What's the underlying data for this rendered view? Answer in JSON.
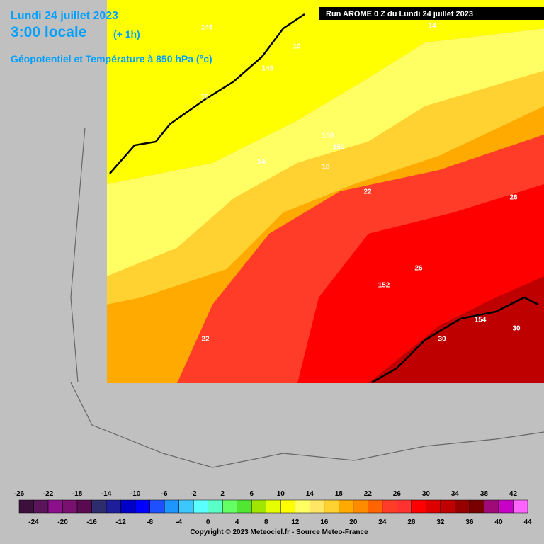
{
  "header": {
    "date": "Lundi 24 juillet 2023",
    "time": "3:00 locale",
    "offset": "(+ 1h)",
    "field": "Géopotentiel et Température à 850 hPa (°c)",
    "run": "Run AROME 0 Z du Lundi 24 juillet 2023"
  },
  "map": {
    "contour_labels": [
      "146",
      "14",
      "10",
      "148",
      "10",
      "150",
      "150",
      "14",
      "18",
      "22",
      "26",
      "26",
      "152",
      "154",
      "30",
      "30",
      "22"
    ]
  },
  "colorbar": {
    "levels": [
      -26,
      -24,
      -22,
      -20,
      -18,
      -16,
      -14,
      -12,
      -10,
      -8,
      -6,
      -4,
      -2,
      0,
      2,
      4,
      6,
      8,
      10,
      12,
      14,
      16,
      18,
      20,
      22,
      24,
      26,
      28,
      30,
      32,
      34,
      36,
      38,
      40,
      42,
      44
    ],
    "colors": [
      "#3d0f3d",
      "#5a145a",
      "#8c0f8c",
      "#7a1070",
      "#5a0a50",
      "#2d2d6e",
      "#1e1e9b",
      "#0000c8",
      "#0000ff",
      "#1e50ff",
      "#1e96ff",
      "#3cc8ff",
      "#5affff",
      "#5affc8",
      "#64ff64",
      "#50e632",
      "#a0e600",
      "#e6ff00",
      "#ffff00",
      "#ffff64",
      "#ffe664",
      "#ffd232",
      "#ffaa00",
      "#ff8c00",
      "#ff6400",
      "#ff3c28",
      "#ff3232",
      "#ff0000",
      "#dc0000",
      "#be0000",
      "#960000",
      "#780000",
      "#a00a78",
      "#c800c8",
      "#ff64ff"
    ]
  },
  "footer": {
    "copyright": "Copyright © 2023 Meteociel.fr - Source Meteo-France"
  }
}
